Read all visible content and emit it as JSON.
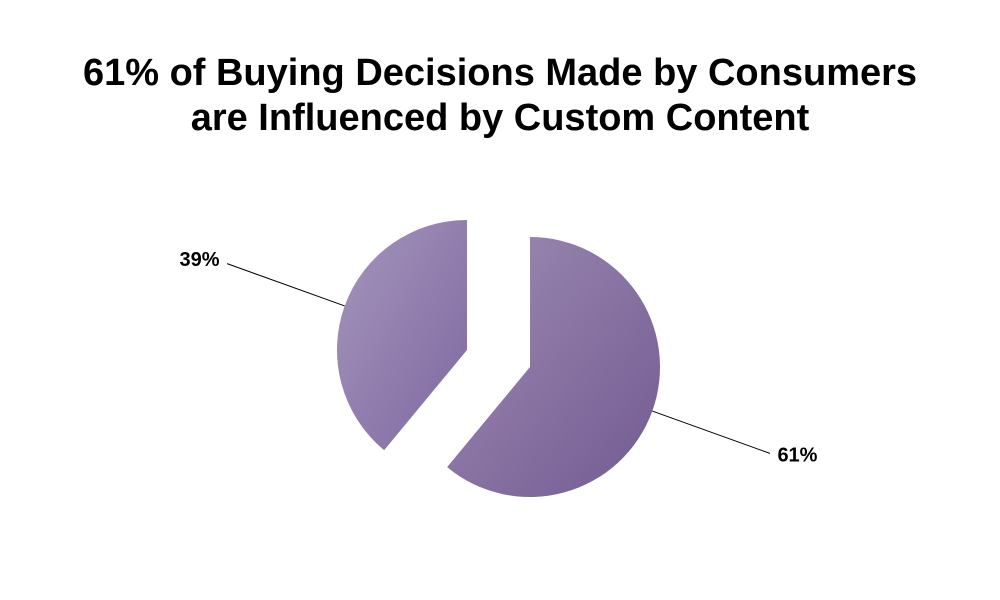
{
  "chart_data": {
    "type": "pie",
    "title": [
      "61% of Buying Decisions Made by Consumers",
      "are Influenced by Custom Content"
    ],
    "values": [
      61,
      39
    ],
    "value_labels": [
      "61%",
      "39%"
    ],
    "colors": [
      "#735a92",
      "#7f68a0"
    ]
  }
}
